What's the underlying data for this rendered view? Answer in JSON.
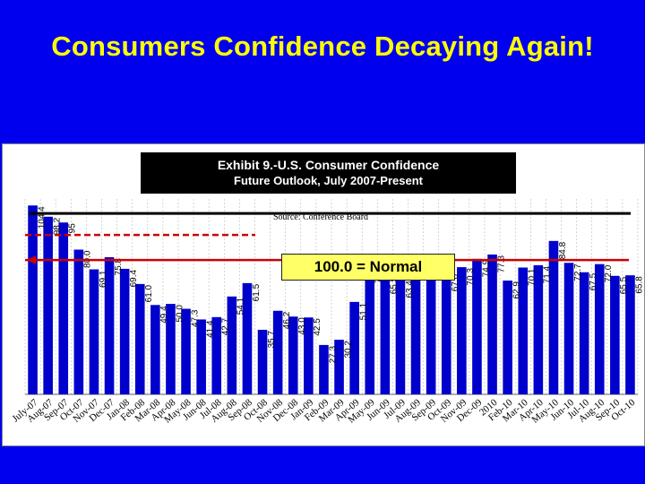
{
  "slide": {
    "title": "Consumers Confidence Decaying Again!"
  },
  "chart_data": {
    "type": "bar",
    "title": "Exhibit 9.-U.S. Consumer Confidence",
    "subtitle": "Future Outlook, July 2007-Present",
    "source": "Source: Conference Board",
    "annotation": "100.0 = Normal",
    "reference_value": 100,
    "ylim": [
      0,
      108
    ],
    "grid": true,
    "colors": {
      "bar": "#0000cc",
      "reference_line": "#cc0000",
      "label": "#000000"
    },
    "categories": [
      "July-07",
      "Aug-07",
      "Sep-07",
      "Oct-07",
      "Nov-07",
      "Dec-07",
      "Jan-08",
      "Feb-08",
      "Mar-08",
      "Apr-08",
      "May-08",
      "Jun-08",
      "Jul-08",
      "Aug-08",
      "Sep-08",
      "Oct-08",
      "Nov-08",
      "Dec-08",
      "Jan-09",
      "Feb-09",
      "Mar-09",
      "Apr-09",
      "May-09",
      "Jun-09",
      "Jul-09",
      "Aug-09",
      "Sep-09",
      "Oct-09",
      "Nov-09",
      "Dec-09",
      "2010",
      "Feb-10",
      "Mar-10",
      "Apr-10",
      "May-10",
      "Jun-10",
      "Jul-10",
      "Aug-10",
      "Sep-10",
      "Oct-10"
    ],
    "values": [
      104.4,
      98.2,
      95,
      80.0,
      69.1,
      75.8,
      69.4,
      61.0,
      49.4,
      50.0,
      47.3,
      41.4,
      42.7,
      54.1,
      61.5,
      35.7,
      46.2,
      43.0,
      42.5,
      27.3,
      30.2,
      51.1,
      71.5,
      65.5,
      63.4,
      73.8,
      73.7,
      67.0,
      70.3,
      74.9,
      77.3,
      62.9,
      70.1,
      71.4,
      84.8,
      72.7,
      67.5,
      72.0,
      65.5,
      65.8
    ],
    "value_labels": [
      "104.4",
      "98.2",
      "95",
      "80.0",
      "69.1",
      "75.8",
      "69.4",
      "61.0",
      "49.4",
      "50.0",
      "47.3",
      "41.4",
      "42.7",
      "54.1",
      "61.5",
      "35.7",
      "46.2",
      "43.0",
      "42.5",
      "27.3",
      "30.2",
      "51.1",
      "71.5",
      "65.5",
      "63.4",
      "73.8",
      "73.7",
      "67.0",
      "70.3",
      "74.9",
      "77.3",
      "62.9",
      "70.1",
      "71.4",
      "84.8",
      "72.7",
      "67.5",
      "72.0",
      "65.5",
      "65.8"
    ]
  }
}
